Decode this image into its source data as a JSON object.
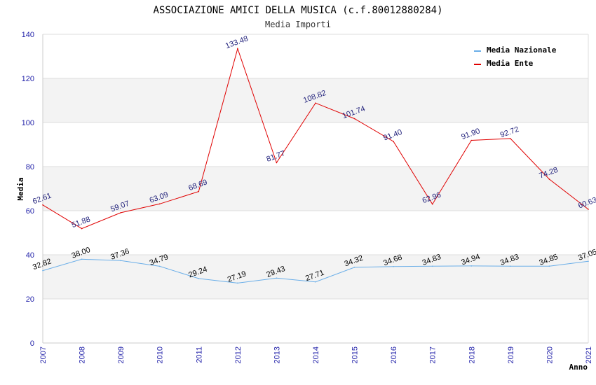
{
  "chart_data": {
    "type": "line",
    "title": "ASSOCIAZIONE AMICI DELLA MUSICA (c.f.80012880284)",
    "subtitle": "Media Importi",
    "xlabel": "Anno",
    "ylabel": "Media",
    "ylim": [
      0,
      140
    ],
    "yticks": [
      0,
      20,
      40,
      60,
      80,
      100,
      120,
      140
    ],
    "grid": true,
    "legend_position": "top-right",
    "categories": [
      "2007",
      "2008",
      "2009",
      "2010",
      "2011",
      "2012",
      "2013",
      "2014",
      "2015",
      "2016",
      "2017",
      "2018",
      "2019",
      "2020",
      "2021"
    ],
    "series": [
      {
        "name": "Media Nazionale",
        "color": "#6aaee8",
        "label_color": "#000000",
        "values": [
          32.82,
          38.0,
          37.36,
          34.79,
          29.24,
          27.19,
          29.43,
          27.71,
          34.32,
          34.68,
          34.83,
          34.94,
          34.83,
          34.85,
          37.05
        ],
        "labels": [
          "32.82",
          "38.00",
          "37.36",
          "34.79",
          "29.24",
          "27.19",
          "29.43",
          "27.71",
          "34.32",
          "34.68",
          "34.83",
          "34.94",
          "34.83",
          "34.85",
          "37.05"
        ]
      },
      {
        "name": "Media Ente",
        "color": "#e00000",
        "label_color": "#1f1f7a",
        "values": [
          62.61,
          51.88,
          59.07,
          63.09,
          68.69,
          133.48,
          81.77,
          108.82,
          101.74,
          91.4,
          62.96,
          91.9,
          92.72,
          74.28,
          60.63
        ],
        "labels": [
          "62.61",
          "51.88",
          "59.07",
          "63.09",
          "68.69",
          "133.48",
          "81.77",
          "108.82",
          "101.74",
          "91.40",
          "62.96",
          "91.90",
          "92.72",
          "74.28",
          "60.63"
        ]
      }
    ]
  }
}
